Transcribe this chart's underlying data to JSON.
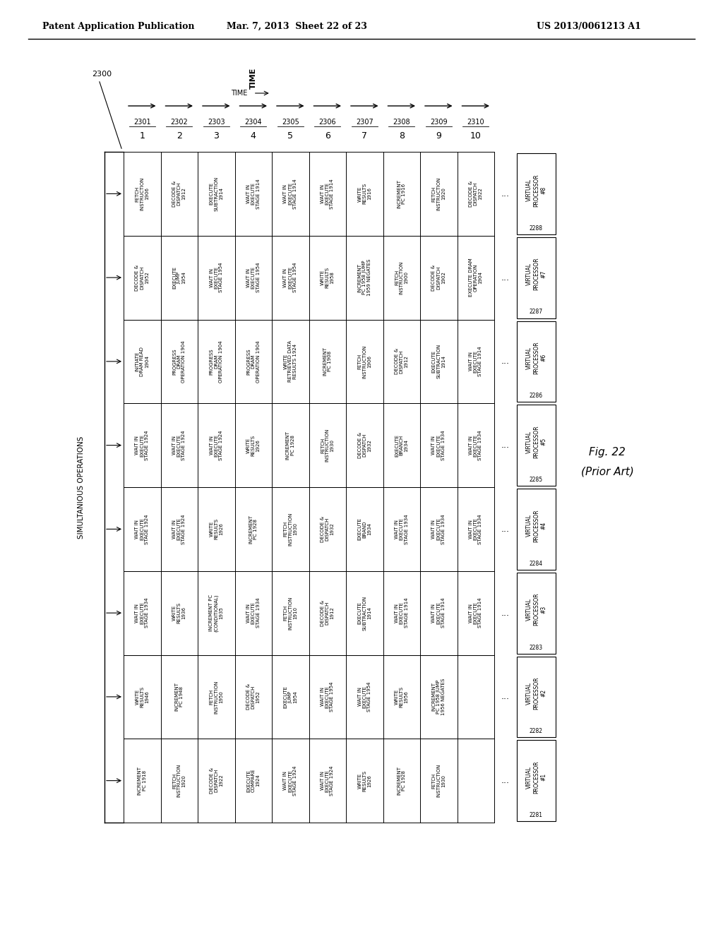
{
  "bg_color": "#ffffff",
  "header_left": "Patent Application Publication",
  "header_mid": "Mar. 7, 2013  Sheet 22 of 23",
  "header_right": "US 2013/0061213 A1",
  "fig_label": "Fig. 22\n(Prior Art)",
  "main_label": "2300",
  "time_label": "TIME",
  "simultaneous_label": "SIMULTANIOUS OPERATIONS",
  "col_labels": [
    "1",
    "2",
    "3",
    "4",
    "5",
    "6",
    "7",
    "8",
    "9",
    "10"
  ],
  "col_ids": [
    "2301",
    "2302",
    "2303",
    "2304",
    "2305",
    "2306",
    "2307",
    "2308",
    "2309",
    "2310"
  ],
  "vp_labels": [
    [
      "VIRTUAL\nPROCESSOR\n#8",
      "2288"
    ],
    [
      "VIRTUAL\nPROCESSOR\n#7",
      "2287"
    ],
    [
      "VIRTUAL\nPROCESSOR\n#6",
      "2286"
    ],
    [
      "VIRTUAL\nPROCESSOR\n#5",
      "2285"
    ],
    [
      "VIRTUAL\nPROCESSOR\n#4",
      "2284"
    ],
    [
      "VIRTUAL\nPROCESSOR\n#3",
      "2283"
    ],
    [
      "VIRTUAL\nPROCESSOR\n#2",
      "2282"
    ],
    [
      "VIRTUAL\nPROCESSOR\n#1",
      "2281"
    ]
  ],
  "rows": [
    [
      "FETCH\nINSTRUCTION\n1906",
      "DECODE &\nDISPATCH\n1912",
      "EXECUTE\nSUBTRACTION\n1914",
      "WAIT IN\nEXECUTE\nSTAGE 1914",
      "WAIT IN\nEXECUTE\nSTAGE 1914",
      "WAIT IN\nEXECUTE\nSTAGE 1914",
      "WRITE\nRESULTS\n1916",
      "INCREMENT\nPC 1916",
      "FETCH\nINSTRUCTION\n1920",
      "DECODE &\nDISPATCH\n1922"
    ],
    [
      "DECODE &\nDISPATCH\n1952",
      "EXECUTE\nJUMP\n1954",
      "WAIT IN\nEXECUTE\nSTAGE 1954",
      "WAIT IN\nEXECUTE\nSTAGE 1954",
      "WAIT IN\nEXECUTE\nSTAGE 1954",
      "WRITE\nRESULTS\n1958",
      "INCREMENT\nPC 1958 JUMP\n1959 NEGATES",
      "FETCH\nINSTRUCTION\n1900",
      "DECODE &\nDISPATCH\n1902",
      "EXECUTE DRAM\nOPERATION\n1904"
    ],
    [
      "INITIATE\nDRAM READ\n1904",
      "PROGRESS\nDRAM\nOPERATION 1904",
      "PROGRESS\nDRAM\nOPERATION 1904",
      "PROGRESS\nDRAM\nOPERATION 1904",
      "WRITE\nRETRIEVED DATA\nRESULTS 1924",
      "INCREMENT\nPC 1908",
      "FETCH\nINSTRUCTION\n1906",
      "DECODE &\nDISPATCH\n1912",
      "EXECUTE\nSUBTRACTION\n1914",
      "WAIT IN\nEXECUTE\nSTAGE 1914"
    ],
    [
      "WAIT IN\nEXECUTE\nSTAGE 1924",
      "WAIT IN\nEXECUTE\nSTAGE 1924",
      "WAIT IN\nEXECUTE\nSTAGE 1924",
      "WRITE\nRESULTS\n1926",
      "INCREMENT\nPC 1928",
      "FETCH\nINSTRUCTION\n1930",
      "DECODE &\nDISPATCH\n1932",
      "EXECUTE\nBRANCH\n1934",
      "WAIT IN\nEXECUTE\nSTAGE 1934",
      "WAIT IN\nEXECUTE\nSTAGE 1934"
    ],
    [
      "WAIT IN\nEXECUTE\nSTAGE 1924",
      "WAIT IN\nEXECUTE\nSTAGE 1924",
      "WRITE\nRESULTS\n1926",
      "INCREMENT\nPC 1928",
      "FETCH\nINSTRUCTION\n1930",
      "DECODE &\nDISPATCH\n1932",
      "EXECUTE\nBRAND\n1934",
      "WAIT IN\nEXECUTE\nSTAGE 1934",
      "WAIT IN\nEXECUTE\nSTAGE 1934",
      "WAIT IN\nEXECUTE\nSTAGE 1934"
    ],
    [
      "WAIT IN\nEXECUTE\nSTAGE 1934",
      "WRITE\nRESULTS\n1936",
      "INCREMENT PC\n(CONDITIONAL)\n1935",
      "WAIT IN\nEXECUTE\nSTAGE 1934",
      "FETCH\nINSTRUCTION\n1910",
      "DECODE &\nDISPATCH\n1912",
      "EXECUTE\nSUBTRACTION\n1914",
      "WAIT IN\nEXECUTE\nSTAGE 1914",
      "WAIT IN\nEXECUTE\nSTAGE 1914",
      "WAIT IN\nEXECUTE\nSTAGE 1914"
    ],
    [
      "WRITE\nRESULTS\n1946",
      "INCREMENT\nPC 1948",
      "FETCH\nINSTRUCTION\n1950",
      "DECODE &\nDISPATCH\n1952",
      "EXECUTE\nJUMP\n1954",
      "WAIT IN\nEXECUTE\nSTAGE 1954",
      "WAIT IN\nEXECUTE\nSTAGE 1954",
      "WRITE\nRESULTS\n1956",
      "INCREMENT\nPC 1958 JUMP\n1956 NEGATES",
      ""
    ],
    [
      "INCREMENT\nPC 1918",
      "FETCH\nINSTRUCTION\n1920",
      "DECODE &\nDISPATCH\n1922",
      "EXECUTE\nCOMPARE\n1924",
      "WAIT IN\nEXECUTE\nSTAGE 1924",
      "WAIT IN\nEXECUTE\nSTAGE 1924",
      "WRITE\nRESULTS\n1926",
      "INCREMENT\nPC 1928",
      "FETCH\nINSTRUCTION\n1930",
      ""
    ]
  ]
}
